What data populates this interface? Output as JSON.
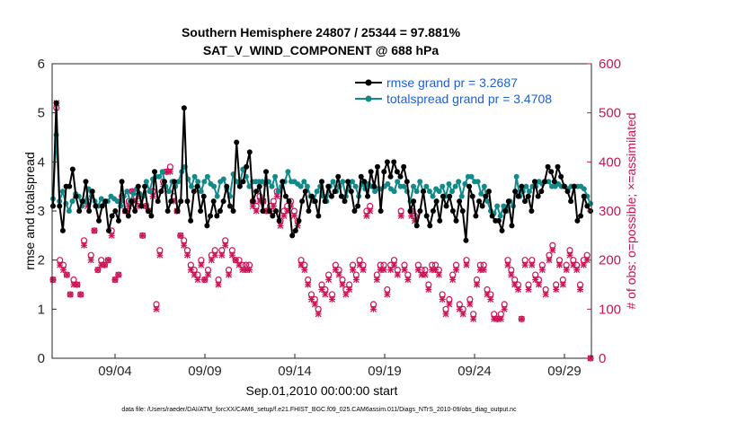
{
  "chart_data": {
    "type": "line",
    "title_line1": "Southern Hemisphere 24807 / 25344 = 97.881%",
    "title_line2": "SAT_V_WIND_COMPONENT @ 688 hPa",
    "ylabel_left": "rmse and totalspread",
    "ylabel_right": "# of obs: o=possible; ×=assimilated",
    "xlabel": "Sep.01,2010 00:00:00 start",
    "footnote": "data file: /Users/raeder/DAI/ATM_forcXX/CAM6_setup/f.e21.FHIST_BGC.f09_025.CAM6assim.011/Diags_NTrS_2010-09/obs_diag_output.nc",
    "x_range": [
      0.5,
      30.5
    ],
    "y_left_range": [
      0,
      6
    ],
    "y_right_range": [
      0,
      600
    ],
    "x_ticks": [
      {
        "v": 4,
        "label": "09/04"
      },
      {
        "v": 9,
        "label": "09/09"
      },
      {
        "v": 14,
        "label": "09/14"
      },
      {
        "v": 19,
        "label": "09/19"
      },
      {
        "v": 24,
        "label": "09/24"
      },
      {
        "v": 29,
        "label": "09/29"
      }
    ],
    "y_left_ticks": [
      "0",
      "1",
      "2",
      "3",
      "4",
      "5",
      "6"
    ],
    "y_right_ticks": [
      "0",
      "100",
      "200",
      "300",
      "400",
      "500",
      "600"
    ],
    "colors": {
      "rmse": "#000000",
      "spread": "#138a8a",
      "obs": "#cc1155",
      "legend_text": "#1f5fd6"
    },
    "series": [
      {
        "name": "rmse grand pr = 3.2687",
        "values": [
          3.1,
          5.2,
          3.1,
          2.6,
          3.5,
          3.5,
          3.85,
          3.3,
          3.0,
          3.2,
          3.6,
          3.0,
          3.4,
          3.1,
          2.8,
          3.1,
          3.2,
          2.6,
          2.9,
          3.0,
          2.8,
          3.6,
          3.0,
          2.9,
          3.2,
          3.0,
          3.5,
          3.1,
          3.5,
          3.0,
          2.9,
          3.8,
          3.2,
          3.4,
          3.6,
          3.0,
          3.2,
          3.6,
          3.0,
          3.2,
          5.1,
          3.2,
          2.8,
          3.4,
          3.5,
          3.0,
          3.3,
          2.7,
          2.9,
          3.2,
          2.9,
          3.0,
          3.2,
          3.5,
          3.1,
          3.0,
          4.4,
          3.5,
          3.6,
          3.9,
          4.2,
          3.2,
          3.4,
          3.5,
          3.0,
          3.8,
          3.0,
          2.9,
          3.0,
          2.8,
          3.6,
          3.3,
          3.2,
          2.5,
          2.6,
          2.8,
          3.2,
          3.4,
          3.0,
          3.3,
          3.2,
          2.9,
          3.6,
          3.2,
          3.5,
          3.3,
          3.4,
          3.7,
          3.3,
          3.2,
          3.6,
          3.4,
          3.0,
          3.1,
          3.7,
          3.6,
          3.3,
          3.8,
          3.5,
          3.9,
          3.0,
          3.8,
          4.0,
          3.7,
          4.0,
          3.8,
          3.7,
          3.9,
          3.6,
          3.0,
          3.2,
          2.7,
          3.0,
          3.4,
          2.9,
          2.7,
          3.0,
          3.2,
          2.8,
          3.3,
          3.1,
          3.3,
          3.0,
          2.8,
          3.2,
          3.0,
          2.4,
          3.5,
          3.3,
          2.9,
          3.2,
          3.1,
          3.3,
          3.4,
          2.9,
          2.8,
          2.8,
          2.6,
          3.0,
          3.2,
          2.7,
          3.4,
          3.3,
          3.5,
          3.2,
          3.3,
          3.0,
          3.6,
          3.3,
          3.4,
          3.6,
          3.9,
          3.8,
          3.6,
          3.9,
          3.7,
          3.5,
          3.4,
          3.2,
          3.5,
          2.8,
          2.9,
          3.3,
          3.1,
          3.0
        ]
      },
      {
        "name": "totalspread grand pr = 3.4708",
        "values": [
          3.25,
          4.55,
          3.2,
          3.4,
          3.15,
          3.0,
          3.2,
          3.35,
          3.3,
          3.1,
          3.2,
          3.45,
          3.3,
          3.2,
          3.1,
          3.25,
          3.15,
          3.2,
          3.3,
          3.25,
          3.2,
          3.1,
          3.3,
          3.4,
          3.2,
          3.35,
          3.45,
          3.35,
          3.3,
          3.6,
          3.4,
          3.65,
          3.7,
          3.7,
          3.8,
          3.5,
          3.4,
          3.6,
          3.5,
          3.6,
          3.8,
          3.9,
          3.65,
          3.5,
          3.7,
          3.6,
          3.4,
          3.6,
          3.7,
          3.55,
          3.5,
          3.3,
          3.6,
          3.65,
          3.45,
          3.3,
          3.75,
          3.6,
          3.55,
          3.85,
          3.7,
          3.5,
          3.6,
          3.6,
          3.6,
          3.6,
          3.55,
          3.6,
          3.5,
          3.7,
          3.4,
          3.5,
          3.6,
          3.8,
          3.6,
          3.6,
          3.55,
          3.5,
          3.6,
          3.5,
          3.3,
          3.2,
          3.4,
          3.5,
          3.3,
          3.2,
          3.5,
          3.6,
          3.4,
          3.5,
          3.6,
          3.3,
          3.5,
          3.6,
          3.5,
          3.3,
          3.55,
          3.45,
          3.55,
          3.5,
          3.4,
          3.45,
          3.45,
          3.5,
          3.55,
          3.45,
          3.4,
          3.6,
          3.5,
          3.5,
          3.4,
          3.2,
          3.5,
          3.4,
          3.6,
          3.4,
          3.5,
          3.4,
          3.3,
          3.45,
          3.4,
          3.5,
          3.3,
          3.55,
          3.4,
          3.5,
          3.6,
          3.3,
          3.55,
          3.7,
          3.7,
          3.6,
          3.6,
          3.35,
          3.5,
          3.2,
          3.0,
          2.95,
          3.1,
          2.9,
          3.1,
          3.0,
          3.2,
          3.1,
          3.7,
          3.3,
          3.4,
          3.5,
          3.4,
          3.5,
          3.5,
          3.6,
          3.55,
          3.6,
          3.6,
          3.5,
          3.5,
          3.55,
          3.5,
          3.5,
          3.45,
          3.5,
          3.5,
          3.5,
          3.5,
          3.45,
          3.3,
          3.15
        ]
      },
      {
        "name": "obs possible",
        "values": [
          160,
          510,
          200,
          190,
          170,
          130,
          160,
          150,
          130,
          240,
          320,
          210,
          260,
          180,
          200,
          190,
          200,
          260,
          160,
          170,
          330,
          300,
          320,
          340,
          330,
          320,
          250,
          310,
          300,
          340,
          110,
          220,
          360,
          380,
          390,
          330,
          300,
          250,
          240,
          220,
          190,
          180,
          170,
          200,
          160,
          180,
          210,
          220,
          160,
          220,
          240,
          180,
          220,
          200,
          200,
          190,
          190,
          190,
          320,
          310,
          330,
          320,
          300,
          310,
          320,
          340,
          280,
          300,
          310,
          320,
          300,
          280,
          200,
          190,
          160,
          130,
          120,
          100,
          150,
          140,
          170,
          130,
          190,
          180,
          160,
          140,
          150,
          190,
          170,
          200,
          190,
          300,
          310,
          110,
          170,
          190,
          190,
          140,
          190,
          200,
          180,
          300,
          190,
          170,
          300,
          290,
          190,
          180,
          180,
          150,
          190,
          190,
          180,
          130,
          100,
          120,
          170,
          190,
          110,
          100,
          200,
          120,
          90,
          160,
          190,
          190,
          140,
          130,
          90,
          80,
          90,
          110,
          200,
          180,
          160,
          150,
          80,
          200,
          150,
          200,
          170,
          160,
          190,
          140,
          210,
          230,
          150,
          200,
          160,
          190,
          220,
          200,
          190,
          150,
          200,
          210,
          0
        ]
      },
      {
        "name": "obs assimilated",
        "values": [
          160,
          520,
          190,
          180,
          170,
          130,
          150,
          150,
          130,
          230,
          310,
          200,
          260,
          180,
          190,
          190,
          200,
          250,
          160,
          170,
          320,
          300,
          310,
          340,
          320,
          310,
          250,
          310,
          300,
          330,
          100,
          210,
          350,
          380,
          380,
          320,
          300,
          250,
          230,
          210,
          180,
          170,
          160,
          190,
          160,
          170,
          200,
          210,
          150,
          210,
          230,
          170,
          210,
          200,
          190,
          180,
          180,
          180,
          310,
          300,
          320,
          320,
          300,
          300,
          310,
          330,
          270,
          290,
          300,
          310,
          290,
          270,
          190,
          180,
          150,
          120,
          110,
          90,
          140,
          130,
          160,
          120,
          180,
          170,
          150,
          130,
          140,
          180,
          160,
          190,
          180,
          290,
          300,
          100,
          160,
          180,
          180,
          130,
          180,
          190,
          170,
          290,
          180,
          160,
          290,
          280,
          180,
          170,
          170,
          140,
          180,
          180,
          170,
          120,
          90,
          110,
          160,
          180,
          100,
          90,
          190,
          110,
          80,
          150,
          180,
          180,
          130,
          120,
          80,
          80,
          80,
          100,
          190,
          170,
          150,
          140,
          80,
          190,
          140,
          190,
          160,
          150,
          180,
          130,
          200,
          220,
          140,
          190,
          150,
          180,
          210,
          190,
          180,
          140,
          190,
          200,
          0
        ]
      }
    ]
  }
}
